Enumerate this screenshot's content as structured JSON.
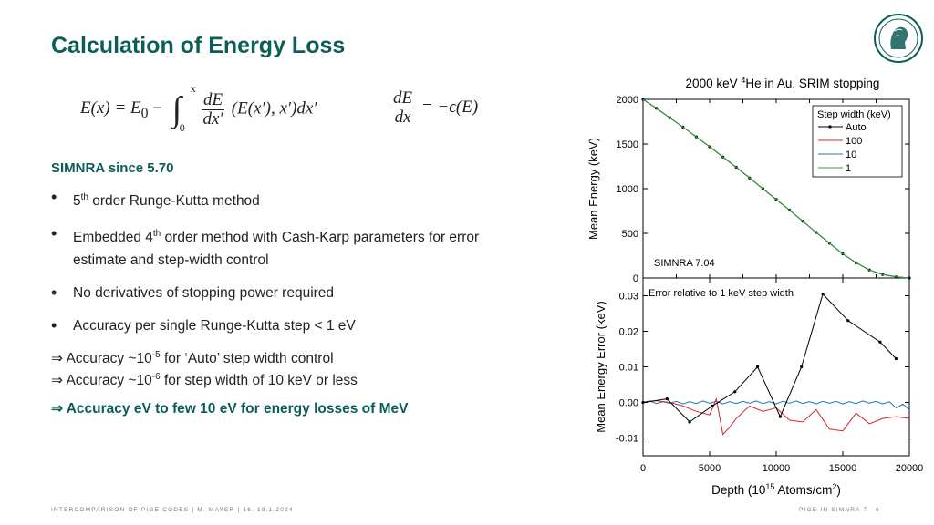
{
  "slide": {
    "title": "Calculation of Energy Loss",
    "formula1": {
      "lhs": "E(x) = E",
      "lhs_sub": "0",
      "minus": "−",
      "int_upper": "x",
      "int_lower": "0",
      "frac_num": "dE",
      "frac_den": "dx′",
      "tail": "(E(x′), x′)dx′"
    },
    "formula2": {
      "frac_num": "dE",
      "frac_den": "dx",
      "rhs": "= −ϵ(E)"
    },
    "section_heading": "SIMNRA since 5.70",
    "bullets": [
      {
        "pre": "5",
        "sup": "th",
        "post": " order Runge-Kutta method"
      },
      {
        "pre": "Embedded 4",
        "sup": "th",
        "post": " order method with Cash-Karp parameters for error estimate and step-width control"
      },
      {
        "pre": "No derivatives of stopping power required",
        "sup": "",
        "post": ""
      },
      {
        "pre": "Accuracy per single Runge-Kutta step < 1 eV",
        "sup": "",
        "post": ""
      }
    ],
    "arrows": [
      {
        "pre": "⇒ Accuracy ~10",
        "sup": "-5",
        "post": " for ‘Auto’ step width control"
      },
      {
        "pre": "⇒ Accuracy ~10",
        "sup": "-6",
        "post": " for step width of 10 keV or less"
      },
      {
        "pre": "⇒ Accuracy eV to few 10 eV for energy losses of MeV",
        "sup": "",
        "post": ""
      }
    ],
    "footer_left": "INTERCOMPARISON OF PIGE CODES | M. MAYER | 16.   18.1.2024",
    "footer_right": "PIGE IN SIMNRA 7",
    "page_number": "6"
  },
  "colors": {
    "title": "#0b5e57",
    "auto": "#000000",
    "s100": "#d62728",
    "s10": "#1f77b4",
    "s1": "#2ca02c"
  },
  "chart_data": [
    {
      "type": "line",
      "title_pre": "2000 keV ",
      "title_sup": "4",
      "title_post": "He in Au, SRIM stopping",
      "ylabel": "Mean Energy (keV)",
      "xlim": [
        0,
        20000
      ],
      "ylim": [
        0,
        2000
      ],
      "yticks": [
        0,
        500,
        1000,
        1500,
        2000
      ],
      "annotation": "SIMNRA 7.04",
      "legend": {
        "title": "Step width (keV)",
        "position": "top-right"
      },
      "x": [
        0,
        1000,
        2000,
        3000,
        4000,
        5000,
        6000,
        7000,
        8000,
        9000,
        10000,
        11000,
        12000,
        13000,
        14000,
        15000,
        16000,
        17000,
        18000,
        19000,
        20000
      ],
      "series": [
        {
          "name": "Auto",
          "key": "auto",
          "markers": true,
          "values": [
            2000,
            1900,
            1795,
            1690,
            1580,
            1470,
            1355,
            1240,
            1120,
            1000,
            880,
            760,
            635,
            510,
            390,
            270,
            170,
            90,
            40,
            12,
            0
          ]
        },
        {
          "name": "100",
          "key": "s100",
          "markers": false,
          "values": [
            2000,
            1900,
            1795,
            1690,
            1580,
            1470,
            1355,
            1240,
            1120,
            1000,
            880,
            760,
            635,
            510,
            390,
            270,
            170,
            90,
            40,
            12,
            0
          ]
        },
        {
          "name": "10",
          "key": "s10",
          "markers": false,
          "values": [
            2000,
            1900,
            1795,
            1690,
            1580,
            1470,
            1355,
            1240,
            1120,
            1000,
            880,
            760,
            635,
            510,
            390,
            270,
            170,
            90,
            40,
            12,
            0
          ]
        },
        {
          "name": "1",
          "key": "s1",
          "markers": false,
          "values": [
            2000,
            1900,
            1795,
            1690,
            1580,
            1470,
            1355,
            1240,
            1120,
            1000,
            880,
            760,
            635,
            510,
            390,
            270,
            170,
            90,
            40,
            12,
            0
          ]
        }
      ]
    },
    {
      "type": "line",
      "ylabel": "Mean Energy Error (keV)",
      "xlabel_pre": "Depth (10",
      "xlabel_sup": "15",
      "xlabel_post": " Atoms/cm",
      "xlabel_sup2": "2",
      "xlabel_end": ")",
      "xlim": [
        0,
        20000
      ],
      "ylim": [
        -0.015,
        0.035
      ],
      "xticks": [
        0,
        5000,
        10000,
        15000,
        20000
      ],
      "yticks": [
        -0.01,
        0.0,
        0.01,
        0.02,
        0.03
      ],
      "ytick_labels": [
        "-0.01",
        "0.00",
        "0.01",
        "0.02",
        "0.03"
      ],
      "annotation": "Error relative to 1 keV step width",
      "series": [
        {
          "name": "Auto",
          "key": "auto",
          "markers": true,
          "x": [
            0,
            1800,
            3500,
            5200,
            6900,
            8600,
            10300,
            11900,
            13500,
            15400,
            17800,
            19000
          ],
          "values": [
            0.0,
            0.001,
            -0.0055,
            -0.001,
            0.003,
            0.01,
            -0.004,
            0.01,
            0.0305,
            0.023,
            0.017,
            0.0123
          ]
        },
        {
          "name": "100",
          "key": "s100",
          "markers": false,
          "x": [
            0,
            1000,
            2000,
            3000,
            4000,
            5000,
            5500,
            6000,
            6500,
            7000,
            8000,
            9000,
            10000,
            11000,
            12000,
            13000,
            14000,
            15000,
            16000,
            17000,
            18000,
            19000,
            20000
          ],
          "values": [
            0.0,
            0.0005,
            0.0,
            -0.001,
            -0.0025,
            -0.0035,
            0.001,
            -0.009,
            -0.007,
            -0.0045,
            -0.001,
            -0.0025,
            -0.0015,
            -0.005,
            -0.0055,
            -0.002,
            -0.0075,
            -0.008,
            -0.003,
            -0.006,
            -0.0045,
            -0.004,
            -0.0045
          ]
        },
        {
          "name": "10",
          "key": "s10",
          "markers": false,
          "x": [
            0,
            500,
            1000,
            1500,
            2000,
            2500,
            3000,
            3500,
            4000,
            4500,
            5000,
            5500,
            6000,
            6500,
            7000,
            7500,
            8000,
            8500,
            9000,
            9500,
            10000,
            10500,
            11000,
            11500,
            12000,
            12500,
            13000,
            13500,
            14000,
            14500,
            15000,
            15500,
            16000,
            16500,
            17000,
            17500,
            18000,
            18500,
            19000,
            19500,
            20000
          ],
          "values": [
            0.0,
            0.0004,
            -0.0003,
            0.0002,
            -0.0002,
            0.0003,
            -0.0004,
            0.0002,
            -0.0003,
            0.0004,
            -0.0002,
            0.0003,
            -0.0004,
            0.0002,
            -0.0003,
            0.0003,
            -0.0002,
            0.0004,
            -0.0003,
            0.0002,
            -0.0004,
            0.0003,
            -0.0002,
            0.0004,
            -0.0003,
            0.0002,
            -0.0004,
            0.0003,
            -0.0002,
            0.0003,
            -0.0004,
            0.0002,
            -0.0003,
            0.0004,
            -0.0002,
            0.0003,
            -0.0004,
            0.0002,
            -0.0015,
            -0.0005,
            -0.002
          ]
        }
      ]
    }
  ]
}
